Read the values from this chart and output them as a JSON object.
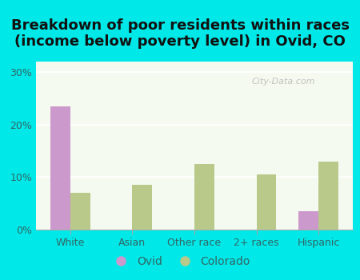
{
  "title": "Breakdown of poor residents within races\n(income below poverty level) in Ovid, CO",
  "categories": [
    "White",
    "Asian",
    "Other race",
    "2+ races",
    "Hispanic"
  ],
  "ovid_values": [
    23.5,
    0,
    0,
    0,
    3.5
  ],
  "colorado_values": [
    7.0,
    8.5,
    12.5,
    10.5,
    13.0
  ],
  "ovid_color": "#cc99cc",
  "colorado_color": "#b8c98a",
  "background_outer": "#00e8e8",
  "background_plot_top": "#e8f0e0",
  "background_plot_bottom": "#f5faf0",
  "yticks": [
    0,
    10,
    20,
    30
  ],
  "ylim": [
    0,
    32
  ],
  "bar_width": 0.32,
  "title_fontsize": 13,
  "tick_fontsize": 9,
  "legend_fontsize": 10,
  "watermark_text": "City-Data.com",
  "title_color": "#111111",
  "tick_color": "#336666"
}
